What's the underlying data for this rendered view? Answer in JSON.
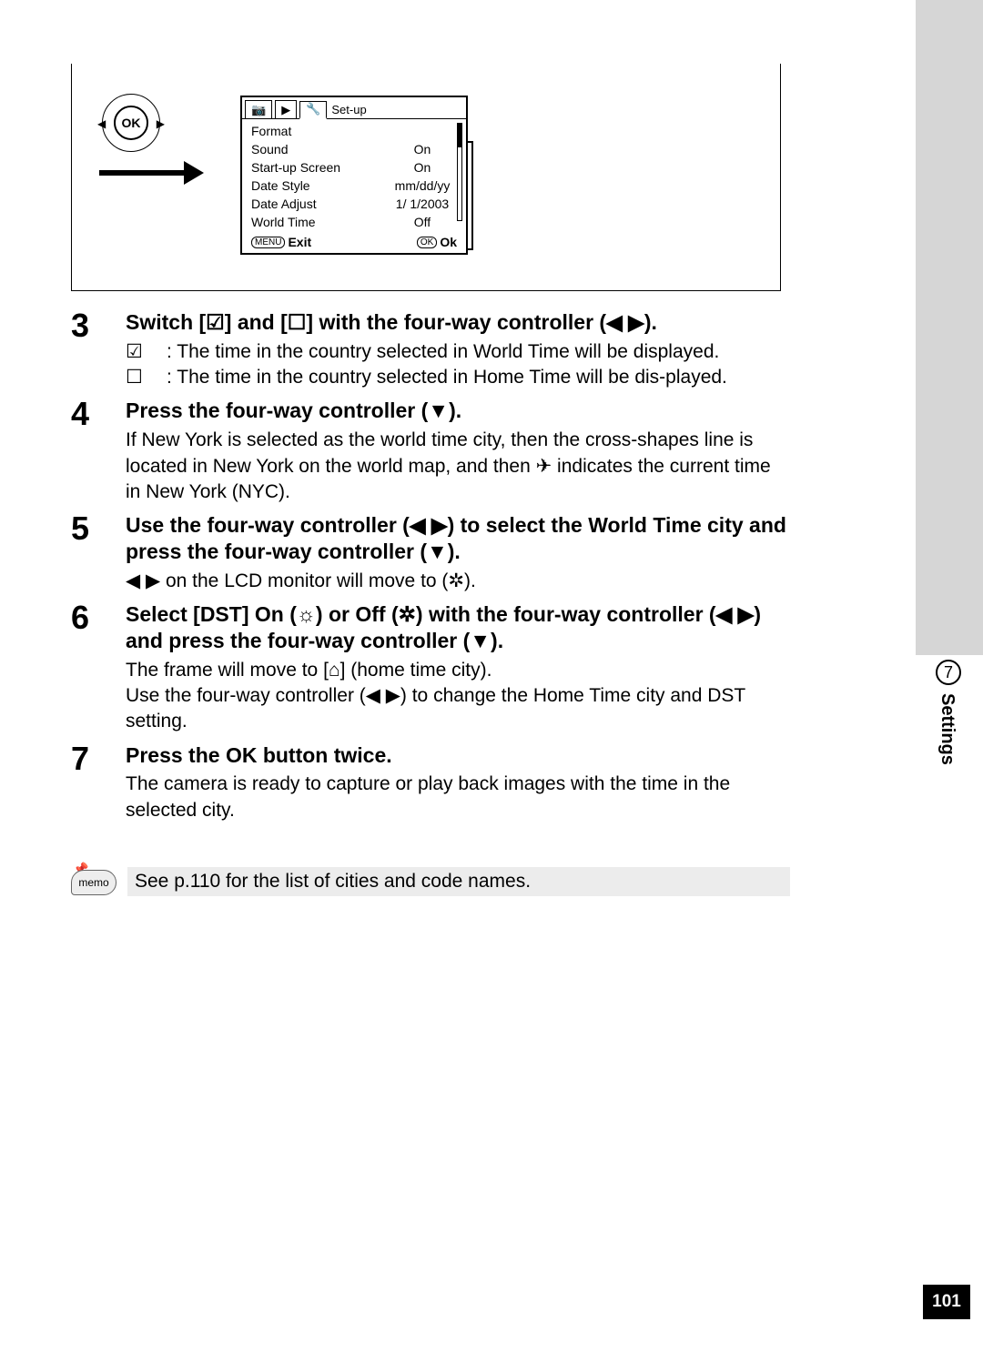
{
  "figure": {
    "ok_label": "OK",
    "lcd": {
      "setup_tab": "Set-up",
      "rows": [
        {
          "label": "Format",
          "value": ""
        },
        {
          "label": "Sound",
          "value": "On"
        },
        {
          "label": "Start-up Screen",
          "value": "On"
        },
        {
          "label": "Date Style",
          "value": "mm/dd/yy"
        },
        {
          "label": "Date Adjust",
          "value": "1/ 1/2003"
        },
        {
          "label": "World Time",
          "value": "Off"
        }
      ],
      "footer_left_btn": "MENU",
      "footer_left": "Exit",
      "footer_right_btn": "OK",
      "footer_right": "Ok"
    }
  },
  "steps": {
    "s3": {
      "num": "3",
      "heading": "Switch [☑] and [☐] with the four-way controller (◀ ▶).",
      "line1_sym": "☑",
      "line1": ": The time in the country selected in World Time will be displayed.",
      "line2_sym": "☐",
      "line2": ": The time in the country selected in Home Time will be dis-played."
    },
    "s4": {
      "num": "4",
      "heading": "Press the four-way controller (▼).",
      "text": "If New York is selected as the world time city, then the cross-shapes line is located in New York on the world map, and then ✈ indicates the current time in New York (NYC)."
    },
    "s5": {
      "num": "5",
      "heading": "Use the four-way controller (◀ ▶) to select the World Time city and press the four-way controller (▼).",
      "text": "◀ ▶ on the LCD monitor will move to (✲)."
    },
    "s6": {
      "num": "6",
      "heading": "Select [DST] On (☼) or Off (✲) with the four-way controller (◀ ▶) and press the four-way controller (▼).",
      "text": "The frame will move to [⌂] (home time city).\nUse the four-way controller (◀ ▶) to change the Home Time city and DST setting."
    },
    "s7": {
      "num": "7",
      "heading": "Press the OK button twice.",
      "text": "The camera is ready to capture or play back images with the time in the selected city."
    }
  },
  "memo": {
    "label": "memo",
    "text": "See p.110 for the list of cities and code names."
  },
  "side": {
    "chapter": "7",
    "section": "Settings",
    "page": "101"
  },
  "colors": {
    "side_gray": "#d6d6d6",
    "memo_gray": "#ececec"
  }
}
